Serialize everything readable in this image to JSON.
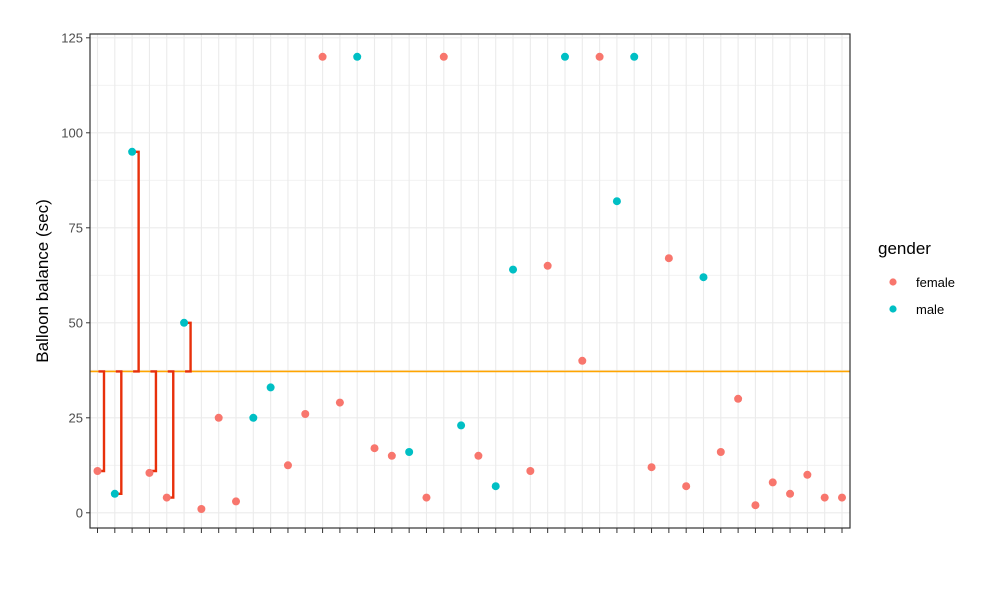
{
  "chart_data": {
    "type": "scatter",
    "ylabel": "Balloon balance (sec)",
    "xlabel": "",
    "ylim": [
      -4,
      126
    ],
    "y_ticks": [
      0,
      25,
      50,
      75,
      100,
      125
    ],
    "x_count": 44,
    "grid": true,
    "legend": {
      "title": "gender",
      "placement": "right",
      "entries": [
        {
          "label": "female",
          "color": "#F8766D"
        },
        {
          "label": "male",
          "color": "#00BFC4"
        }
      ]
    },
    "colors": {
      "female": "#F8766D",
      "male": "#00BFC4",
      "mean_line": "#FFA500",
      "residual": "#E8300B"
    },
    "mean_line_value": 37.2,
    "points": [
      {
        "x": 1,
        "y": 11,
        "gender": "female"
      },
      {
        "x": 2,
        "y": 5,
        "gender": "male"
      },
      {
        "x": 3,
        "y": 95,
        "gender": "male"
      },
      {
        "x": 4,
        "y": 10.5,
        "gender": "female"
      },
      {
        "x": 5,
        "y": 4,
        "gender": "female"
      },
      {
        "x": 6,
        "y": 50,
        "gender": "male"
      },
      {
        "x": 7,
        "y": 1,
        "gender": "female"
      },
      {
        "x": 8,
        "y": 25,
        "gender": "female"
      },
      {
        "x": 9,
        "y": 3,
        "gender": "female"
      },
      {
        "x": 10,
        "y": 25,
        "gender": "male"
      },
      {
        "x": 11,
        "y": 33,
        "gender": "male"
      },
      {
        "x": 12,
        "y": 12.5,
        "gender": "female"
      },
      {
        "x": 13,
        "y": 26,
        "gender": "female"
      },
      {
        "x": 14,
        "y": 120,
        "gender": "female"
      },
      {
        "x": 15,
        "y": 29,
        "gender": "female"
      },
      {
        "x": 16,
        "y": 120,
        "gender": "male"
      },
      {
        "x": 17,
        "y": 17,
        "gender": "female"
      },
      {
        "x": 18,
        "y": 15,
        "gender": "female"
      },
      {
        "x": 19,
        "y": 16,
        "gender": "male"
      },
      {
        "x": 20,
        "y": 4,
        "gender": "female"
      },
      {
        "x": 21,
        "y": 120,
        "gender": "female"
      },
      {
        "x": 22,
        "y": 23,
        "gender": "male"
      },
      {
        "x": 23,
        "y": 15,
        "gender": "female"
      },
      {
        "x": 24,
        "y": 7,
        "gender": "male"
      },
      {
        "x": 25,
        "y": 64,
        "gender": "male"
      },
      {
        "x": 26,
        "y": 11,
        "gender": "female"
      },
      {
        "x": 27,
        "y": 65,
        "gender": "female"
      },
      {
        "x": 28,
        "y": 120,
        "gender": "male"
      },
      {
        "x": 29,
        "y": 40,
        "gender": "female"
      },
      {
        "x": 30,
        "y": 120,
        "gender": "female"
      },
      {
        "x": 31,
        "y": 82,
        "gender": "male"
      },
      {
        "x": 32,
        "y": 120,
        "gender": "male"
      },
      {
        "x": 33,
        "y": 12,
        "gender": "female"
      },
      {
        "x": 34,
        "y": 67,
        "gender": "female"
      },
      {
        "x": 35,
        "y": 7,
        "gender": "female"
      },
      {
        "x": 36,
        "y": 62,
        "gender": "male"
      },
      {
        "x": 37,
        "y": 16,
        "gender": "female"
      },
      {
        "x": 38,
        "y": 30,
        "gender": "female"
      },
      {
        "x": 39,
        "y": 2,
        "gender": "female"
      },
      {
        "x": 40,
        "y": 8,
        "gender": "female"
      },
      {
        "x": 41,
        "y": 5,
        "gender": "female"
      },
      {
        "x": 42,
        "y": 10,
        "gender": "female"
      },
      {
        "x": 43,
        "y": 4,
        "gender": "female"
      },
      {
        "x": 44,
        "y": 4,
        "gender": "female"
      }
    ],
    "residual_segments": [
      {
        "x": 1,
        "y": 11
      },
      {
        "x": 2,
        "y": 5
      },
      {
        "x": 3,
        "y": 95
      },
      {
        "x": 4,
        "y": 11
      },
      {
        "x": 5,
        "y": 4
      },
      {
        "x": 6,
        "y": 50
      }
    ]
  }
}
